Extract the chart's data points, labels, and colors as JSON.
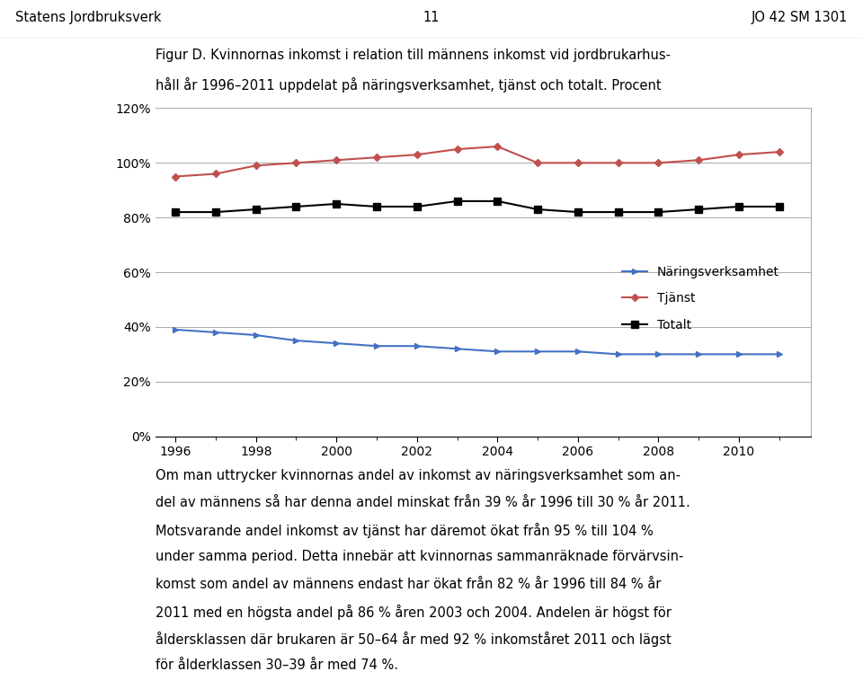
{
  "years": [
    1996,
    1997,
    1998,
    1999,
    2000,
    2001,
    2002,
    2003,
    2004,
    2005,
    2006,
    2007,
    2008,
    2009,
    2010,
    2011
  ],
  "naringsverksamhet": [
    39,
    38,
    37,
    35,
    34,
    33,
    33,
    32,
    31,
    31,
    31,
    30,
    30,
    30,
    30,
    30
  ],
  "tjanst": [
    95,
    96,
    99,
    100,
    101,
    102,
    103,
    105,
    106,
    100,
    100,
    100,
    100,
    101,
    103,
    104
  ],
  "totalt": [
    82,
    82,
    83,
    84,
    85,
    84,
    84,
    86,
    86,
    83,
    82,
    82,
    82,
    83,
    84,
    84
  ],
  "narings_color": "#4472C4",
  "tjanst_color": "#C0504D",
  "totalt_color": "#000000",
  "bg_color": "#FFFFFF",
  "plot_bg_color": "#FFFFFF",
  "grid_color": "#AAAAAA",
  "ylim": [
    0,
    120
  ],
  "yticks": [
    0,
    20,
    40,
    60,
    80,
    100,
    120
  ],
  "ytick_labels": [
    "0%",
    "20%",
    "40%",
    "60%",
    "80%",
    "100%",
    "120%"
  ],
  "xticks": [
    1996,
    1998,
    2000,
    2002,
    2004,
    2006,
    2008,
    2010
  ],
  "header_left": "Statens Jordbruksverk",
  "header_center": "11",
  "header_right": "JO 42 SM 1301",
  "figure_title_line1": "Figur D. Kvinnornas inkomst i relation till männens inkomst vid jordbrukarhus-",
  "figure_title_line2": "håll år 1996–2011 uppdelat på näringsverksamhet, tjänst och totalt. Procent",
  "legend_narings": "Näringsverksamhet",
  "legend_tjanst": "Tjänst",
  "legend_totalt": "Totalt",
  "footer_text": "Om man uttrycker kvinnornas andel av inkomst av näringsverksamhet som an-\ndel av männens så har denna andel minskat från 39 % år 1996 till 30 % år 2011.\nMotsvarande andel inkomst av tjänst har däremot ökat från 95 % till 104 %\nunder samma period. Detta innebär att kvinnornas sammanräknade förvärvsin-\nkomst som andel av männens endast har ökat från 82 % år 1996 till 84 % år\n2011 med en högsta andel på 86 % åren 2003 och 2004. Andelen är högst för\nåldersklassen där brukaren är 50–64 år med 92 % inkomståret 2011 och lägst\nför ålderklassen 30–39 år med 74 %."
}
